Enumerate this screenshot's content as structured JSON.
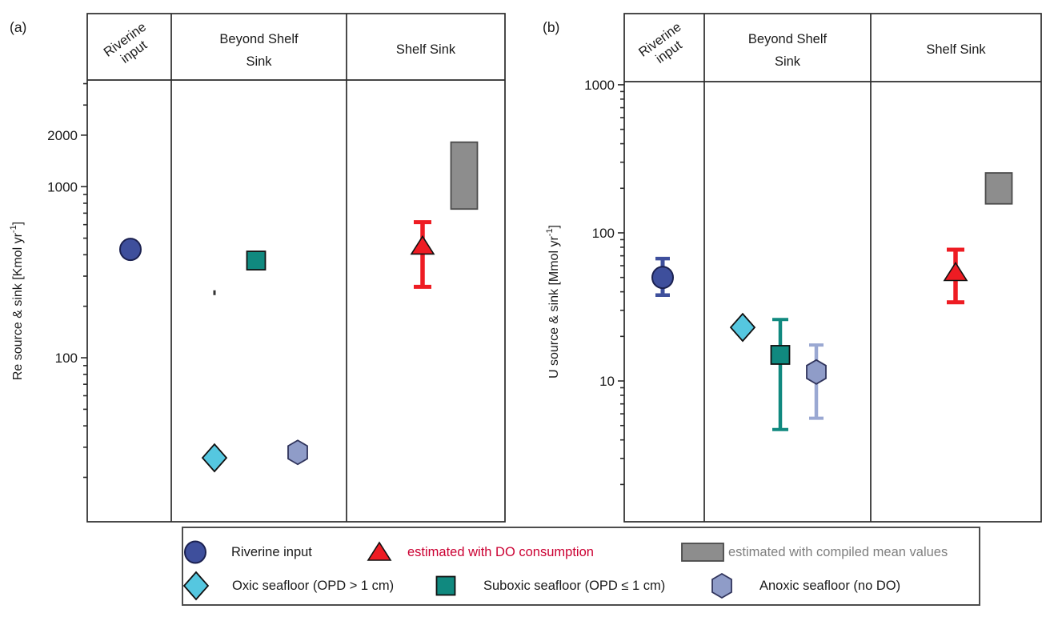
{
  "figure": {
    "panel_a_tag": "(a)",
    "panel_b_tag": "(b)"
  },
  "colors": {
    "navy": "#3E4F9C",
    "navy_dark": "#1B2150",
    "cyan": "#55C7E0",
    "teal": "#10897F",
    "slate": "#8F9CC8",
    "slate_light": "#9AA8D2",
    "slate_dark": "#30345C",
    "red": "#EE1C23",
    "red_text": "#CB0032",
    "gray_fill": "#8D8D8D",
    "gray_dark": "#4A4A4A",
    "gray_text": "#7F7F7F",
    "frame": "#2B2B2B",
    "text": "#1A1A1A"
  },
  "chart_data": [
    {
      "panel": "a",
      "type": "scatter",
      "yscale": "log",
      "ylabel": "Re source & sink [Kmol yr-1]",
      "ylabel_parts": {
        "pre": "Re source & sink [Kmol yr",
        "sup": "-1",
        "post": "]"
      },
      "ylim": [
        11,
        4200
      ],
      "yticks_labeled": [
        100,
        1000,
        2000
      ],
      "categories": [
        "Riverine input",
        "Beyond Shelf Sink",
        "Shelf Sink"
      ],
      "header_lines": [
        [
          "Riverine",
          "input"
        ],
        [
          "Beyond Shelf",
          "Sink"
        ],
        [
          "Shelf Sink"
        ]
      ],
      "points": [
        {
          "series": "Riverine input",
          "category": "Riverine input",
          "marker": "circle",
          "value": 430
        },
        {
          "series": "Oxic seafloor (OPD > 1 cm)",
          "category": "Beyond Shelf Sink",
          "marker": "diamond",
          "value": 26
        },
        {
          "series": "Suboxic seafloor (OPD ≤ 1 cm)",
          "category": "Beyond Shelf Sink",
          "marker": "square",
          "value": 370
        },
        {
          "series": "Anoxic seafloor (no DO)",
          "category": "Beyond Shelf Sink",
          "marker": "hexagon",
          "value": 28
        },
        {
          "series": "estimated with DO consumption",
          "category": "Shelf Sink",
          "marker": "triangle",
          "value": 450,
          "err_lo": 260,
          "err_hi": 620
        },
        {
          "series": "estimated with compiled mean values",
          "category": "Shelf Sink",
          "marker": "range-rect",
          "value_lo": 740,
          "value_hi": 1820
        }
      ],
      "annotations": [
        {
          "category": "Beyond Shelf Sink",
          "value": 240,
          "mark": "small-dash"
        }
      ]
    },
    {
      "panel": "b",
      "type": "scatter",
      "yscale": "log",
      "ylabel": "U source & sink [Mmol yr-1]",
      "ylabel_parts": {
        "pre": "U source & sink [Mmol yr",
        "sup": "-1",
        "post": "]"
      },
      "ylim": [
        1.12,
        1050
      ],
      "yticks_labeled": [
        10,
        100,
        1000
      ],
      "categories": [
        "Riverine input",
        "Beyond Shelf Sink",
        "Shelf Sink"
      ],
      "header_lines": [
        [
          "Riverine",
          "input"
        ],
        [
          "Beyond Shelf",
          "Sink"
        ],
        [
          "Shelf Sink"
        ]
      ],
      "points": [
        {
          "series": "Riverine input",
          "category": "Riverine input",
          "marker": "circle",
          "value": 50,
          "err_lo": 38,
          "err_hi": 67
        },
        {
          "series": "Oxic seafloor (OPD > 1 cm)",
          "category": "Beyond Shelf Sink",
          "marker": "diamond",
          "value": 23
        },
        {
          "series": "Suboxic seafloor (OPD ≤ 1 cm)",
          "category": "Beyond Shelf Sink",
          "marker": "square",
          "value": 15,
          "err_lo": 4.7,
          "err_hi": 26
        },
        {
          "series": "Anoxic seafloor (no DO)",
          "category": "Beyond Shelf Sink",
          "marker": "hexagon",
          "value": 11.5,
          "err_lo": 5.6,
          "err_hi": 17.5
        },
        {
          "series": "estimated with DO consumption",
          "category": "Shelf Sink",
          "marker": "triangle",
          "value": 54,
          "err_lo": 34,
          "err_hi": 77
        },
        {
          "series": "estimated with compiled mean values",
          "category": "Shelf Sink",
          "marker": "range-rect",
          "value_lo": 157,
          "value_hi": 254
        }
      ],
      "annotations": []
    }
  ],
  "legend": {
    "items": [
      {
        "label": "Riverine input",
        "marker": "circle",
        "text_color": "text",
        "row": 0
      },
      {
        "label": "estimated with DO consumption",
        "marker": "triangle",
        "text_color": "red_text",
        "row": 0
      },
      {
        "label": "estimated with compiled mean values",
        "marker": "range-rect",
        "text_color": "gray_text",
        "row": 0
      },
      {
        "label": "Oxic seafloor (OPD > 1 cm)",
        "marker": "diamond",
        "text_color": "text",
        "row": 1
      },
      {
        "label": "Suboxic seafloor (OPD ≤ 1 cm)",
        "marker": "square",
        "text_color": "text",
        "row": 1
      },
      {
        "label": "Anoxic seafloor (no DO)",
        "marker": "hexagon",
        "text_color": "text",
        "row": 1
      }
    ]
  }
}
